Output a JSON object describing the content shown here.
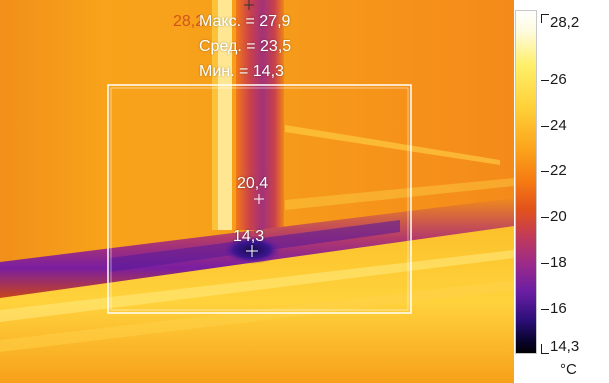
{
  "overlay": {
    "ghost_text": "28,2",
    "max_label": "Макс. = 27,9",
    "avg_label": "Сред. = 23,5",
    "min_label": "Мин. = 14,3"
  },
  "spots": [
    {
      "label": "20,4",
      "name": "spot-warm"
    },
    {
      "label": "14,3",
      "name": "spot-cold"
    }
  ],
  "scale": {
    "max": "28,2",
    "ticks": [
      "26",
      "24",
      "22",
      "20",
      "18",
      "16"
    ],
    "min": "14,3",
    "unit": "°C"
  },
  "colors": {
    "palette": "iron",
    "box": "#ffffff"
  }
}
